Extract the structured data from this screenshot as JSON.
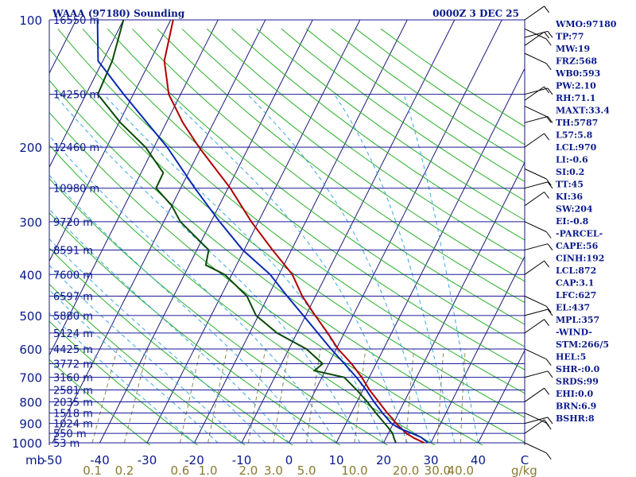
{
  "header": {
    "station": "WAAA (97180) Sounding",
    "time": "0000Z  3 DEC 25"
  },
  "axes": {
    "p_unit": "mb",
    "mix_unit": "g/kg"
  },
  "chart_data": {
    "type": "skew-t",
    "title": "WAAA (97180) Sounding",
    "ylabel": "Pressure (mb)",
    "xlabel": "Temperature (C)",
    "ylim": [
      1000,
      100
    ],
    "xlim": [
      -50,
      50
    ],
    "pressure_ticks": [
      "100",
      "200",
      "300",
      "400",
      "500",
      "600",
      "700",
      "800",
      "900",
      "1000"
    ],
    "pressure_values": [
      100,
      200,
      300,
      400,
      500,
      600,
      700,
      800,
      900,
      1000
    ],
    "height_levels": [
      {
        "p": 100,
        "label": "16550 m"
      },
      {
        "p": 150,
        "label": "14250 m"
      },
      {
        "p": 200,
        "label": "12460 m"
      },
      {
        "p": 250,
        "label": "10980 m"
      },
      {
        "p": 300,
        "label": "9720 m"
      },
      {
        "p": 350,
        "label": "8591 m"
      },
      {
        "p": 400,
        "label": "7600 m"
      },
      {
        "p": 450,
        "label": "6597 m"
      },
      {
        "p": 500,
        "label": "5880 m"
      },
      {
        "p": 550,
        "label": "5124 m"
      },
      {
        "p": 600,
        "label": "4425 m"
      },
      {
        "p": 650,
        "label": "3772 m"
      },
      {
        "p": 700,
        "label": "3160 m"
      },
      {
        "p": 750,
        "label": "2581 m"
      },
      {
        "p": 800,
        "label": "2035 m"
      },
      {
        "p": 850,
        "label": "1518 m"
      },
      {
        "p": 900,
        "label": "1024 m"
      },
      {
        "p": 950,
        "label": "550 m"
      },
      {
        "p": 1000,
        "label": "53 m"
      }
    ],
    "temperature_ticks": [
      "-50",
      "-40",
      "-30",
      "-20",
      "-10",
      "0",
      "10",
      "20",
      "30",
      "40"
    ],
    "temperature_values": [
      -50,
      -40,
      -30,
      -20,
      -10,
      0,
      10,
      20,
      30,
      40
    ],
    "mixing_ratio_ticks": [
      "0.1",
      "0.2",
      "0.6",
      "1.0",
      "2.0",
      "3.0",
      "5.0",
      "10.0",
      "20.0",
      "30.0",
      "40.0"
    ],
    "mixing_ratio_values": [
      0.1,
      0.2,
      0.6,
      1.0,
      2.0,
      3.0,
      5.0,
      10.0,
      20.0,
      30.0,
      40.0
    ],
    "series": [
      {
        "name": "Temperature",
        "color": "#b00000",
        "points": [
          [
            1000,
            28.6
          ],
          [
            975,
            26
          ],
          [
            950,
            23.8
          ],
          [
            925,
            22.2
          ],
          [
            900,
            20.6
          ],
          [
            875,
            19.2
          ],
          [
            850,
            17.6
          ],
          [
            800,
            14.6
          ],
          [
            750,
            11.4
          ],
          [
            700,
            8.4
          ],
          [
            650,
            4.8
          ],
          [
            600,
            0.4
          ],
          [
            550,
            -3.5
          ],
          [
            500,
            -8
          ],
          [
            450,
            -12.8
          ],
          [
            400,
            -17.2
          ],
          [
            350,
            -24
          ],
          [
            300,
            -31.5
          ],
          [
            250,
            -39.5
          ],
          [
            200,
            -50.5
          ],
          [
            175,
            -56.5
          ],
          [
            150,
            -62.5
          ],
          [
            125,
            -67
          ],
          [
            100,
            -69.5
          ]
        ]
      },
      {
        "name": "Dewpoint",
        "color": "#0a4a0a",
        "points": [
          [
            1000,
            22.6
          ],
          [
            975,
            21.7
          ],
          [
            950,
            20.9
          ],
          [
            925,
            19.6
          ],
          [
            900,
            18.2
          ],
          [
            850,
            15.2
          ],
          [
            800,
            12.2
          ],
          [
            750,
            8.7
          ],
          [
            700,
            4.7
          ],
          [
            675,
            -2.3
          ],
          [
            650,
            -1.3
          ],
          [
            600,
            -6.3
          ],
          [
            550,
            -14.2
          ],
          [
            500,
            -20.5
          ],
          [
            450,
            -24.5
          ],
          [
            400,
            -31.5
          ],
          [
            380,
            -36.5
          ],
          [
            350,
            -37.5
          ],
          [
            300,
            -46.5
          ],
          [
            275,
            -50
          ],
          [
            250,
            -55.2
          ],
          [
            230,
            -55.3
          ],
          [
            200,
            -61.8
          ],
          [
            175,
            -69.7
          ],
          [
            150,
            -77.5
          ],
          [
            125,
            -78
          ],
          [
            100,
            -80
          ]
        ]
      },
      {
        "name": "Parcel",
        "color": "#0a2ab0",
        "points": [
          [
            1000,
            29.4
          ],
          [
            970,
            27.3
          ],
          [
            950,
            25
          ],
          [
            925,
            21.9
          ],
          [
            900,
            19.6
          ],
          [
            850,
            16.6
          ],
          [
            800,
            13.6
          ],
          [
            750,
            10.7
          ],
          [
            700,
            7.3
          ],
          [
            650,
            3.3
          ],
          [
            600,
            -1.1
          ],
          [
            550,
            -5.6
          ],
          [
            500,
            -10.5
          ],
          [
            450,
            -16
          ],
          [
            400,
            -21.9
          ],
          [
            350,
            -30.3
          ],
          [
            300,
            -38.2
          ],
          [
            250,
            -47
          ],
          [
            200,
            -57.2
          ],
          [
            150,
            -72
          ],
          [
            125,
            -81
          ],
          [
            100,
            -85.5
          ]
        ]
      }
    ],
    "indices": [
      "WMO:97180",
      "TP:77",
      "MW:19",
      "FRZ:568",
      "WB0:593",
      "PW:2.10",
      "RH:71.1",
      "MAXT:33.4",
      "TH:5787",
      "L57:5.8",
      "LCL:970",
      "LI:-0.6",
      "SI:0.2",
      "TT:45",
      "KI:36",
      "SW:204",
      "EI:-0.8",
      "-PARCEL-",
      "CAPE:56",
      "CINH:192",
      "LCL:872",
      "CAP:3.1",
      "LFC:627",
      "EL:437",
      "MPL:357",
      "-WIND-",
      "STM:266/5",
      "HEL:5",
      "SHR-:0.0",
      "SRDS:99",
      "EHI:0.0",
      "BRN:6.9",
      "BSHR:8"
    ]
  }
}
